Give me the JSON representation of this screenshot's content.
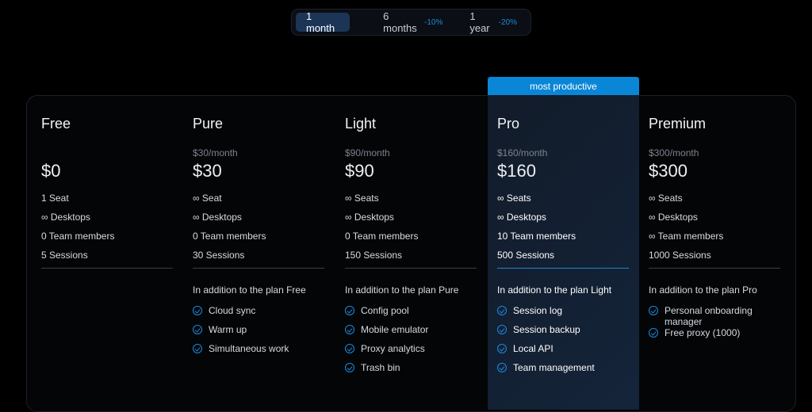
{
  "billing_toggle": {
    "options": [
      {
        "label": "1 month",
        "discount": "",
        "active": true
      },
      {
        "label": "6 months",
        "discount": "-10%"
      },
      {
        "label": "1 year",
        "discount": "-20%"
      }
    ]
  },
  "badge": "most productive",
  "accent_color": "#0a86d6",
  "plans": [
    {
      "name": "Free",
      "per_month": "",
      "price": "$0",
      "features": [
        "1 Seat",
        "∞ Desktops",
        "0 Team members",
        "5 Sessions"
      ],
      "addition": "",
      "extras": []
    },
    {
      "name": "Pure",
      "per_month": "$30/month",
      "price": "$30",
      "features": [
        "∞ Seat",
        "∞ Desktops",
        "0 Team members",
        "30 Sessions"
      ],
      "addition": "In addition to the plan Free",
      "extras": [
        "Cloud sync",
        "Warm up",
        "Simultaneous work"
      ]
    },
    {
      "name": "Light",
      "per_month": "$90/month",
      "price": "$90",
      "features": [
        "∞ Seats",
        "∞ Desktops",
        "0 Team members",
        "150 Sessions"
      ],
      "addition": "In addition to the plan Pure",
      "extras": [
        "Config pool",
        "Mobile emulator",
        "Proxy analytics",
        "Trash bin"
      ]
    },
    {
      "name": "Pro",
      "per_month": "$160/month",
      "price": "$160",
      "features": [
        "∞ Seats",
        "∞ Desktops",
        "10 Team members",
        "500 Sessions"
      ],
      "addition": "In addition to the plan Light",
      "extras": [
        "Session log",
        "Session backup",
        "Local API",
        "Team management"
      ]
    },
    {
      "name": "Premium",
      "per_month": "$300/month",
      "price": "$300",
      "features": [
        "∞ Seats",
        "∞ Desktops",
        "∞ Team members",
        "1000 Sessions"
      ],
      "addition": "In addition to the plan Pro",
      "extras": [
        "Personal onboarding manager",
        "Free proxy (1000)"
      ]
    }
  ]
}
